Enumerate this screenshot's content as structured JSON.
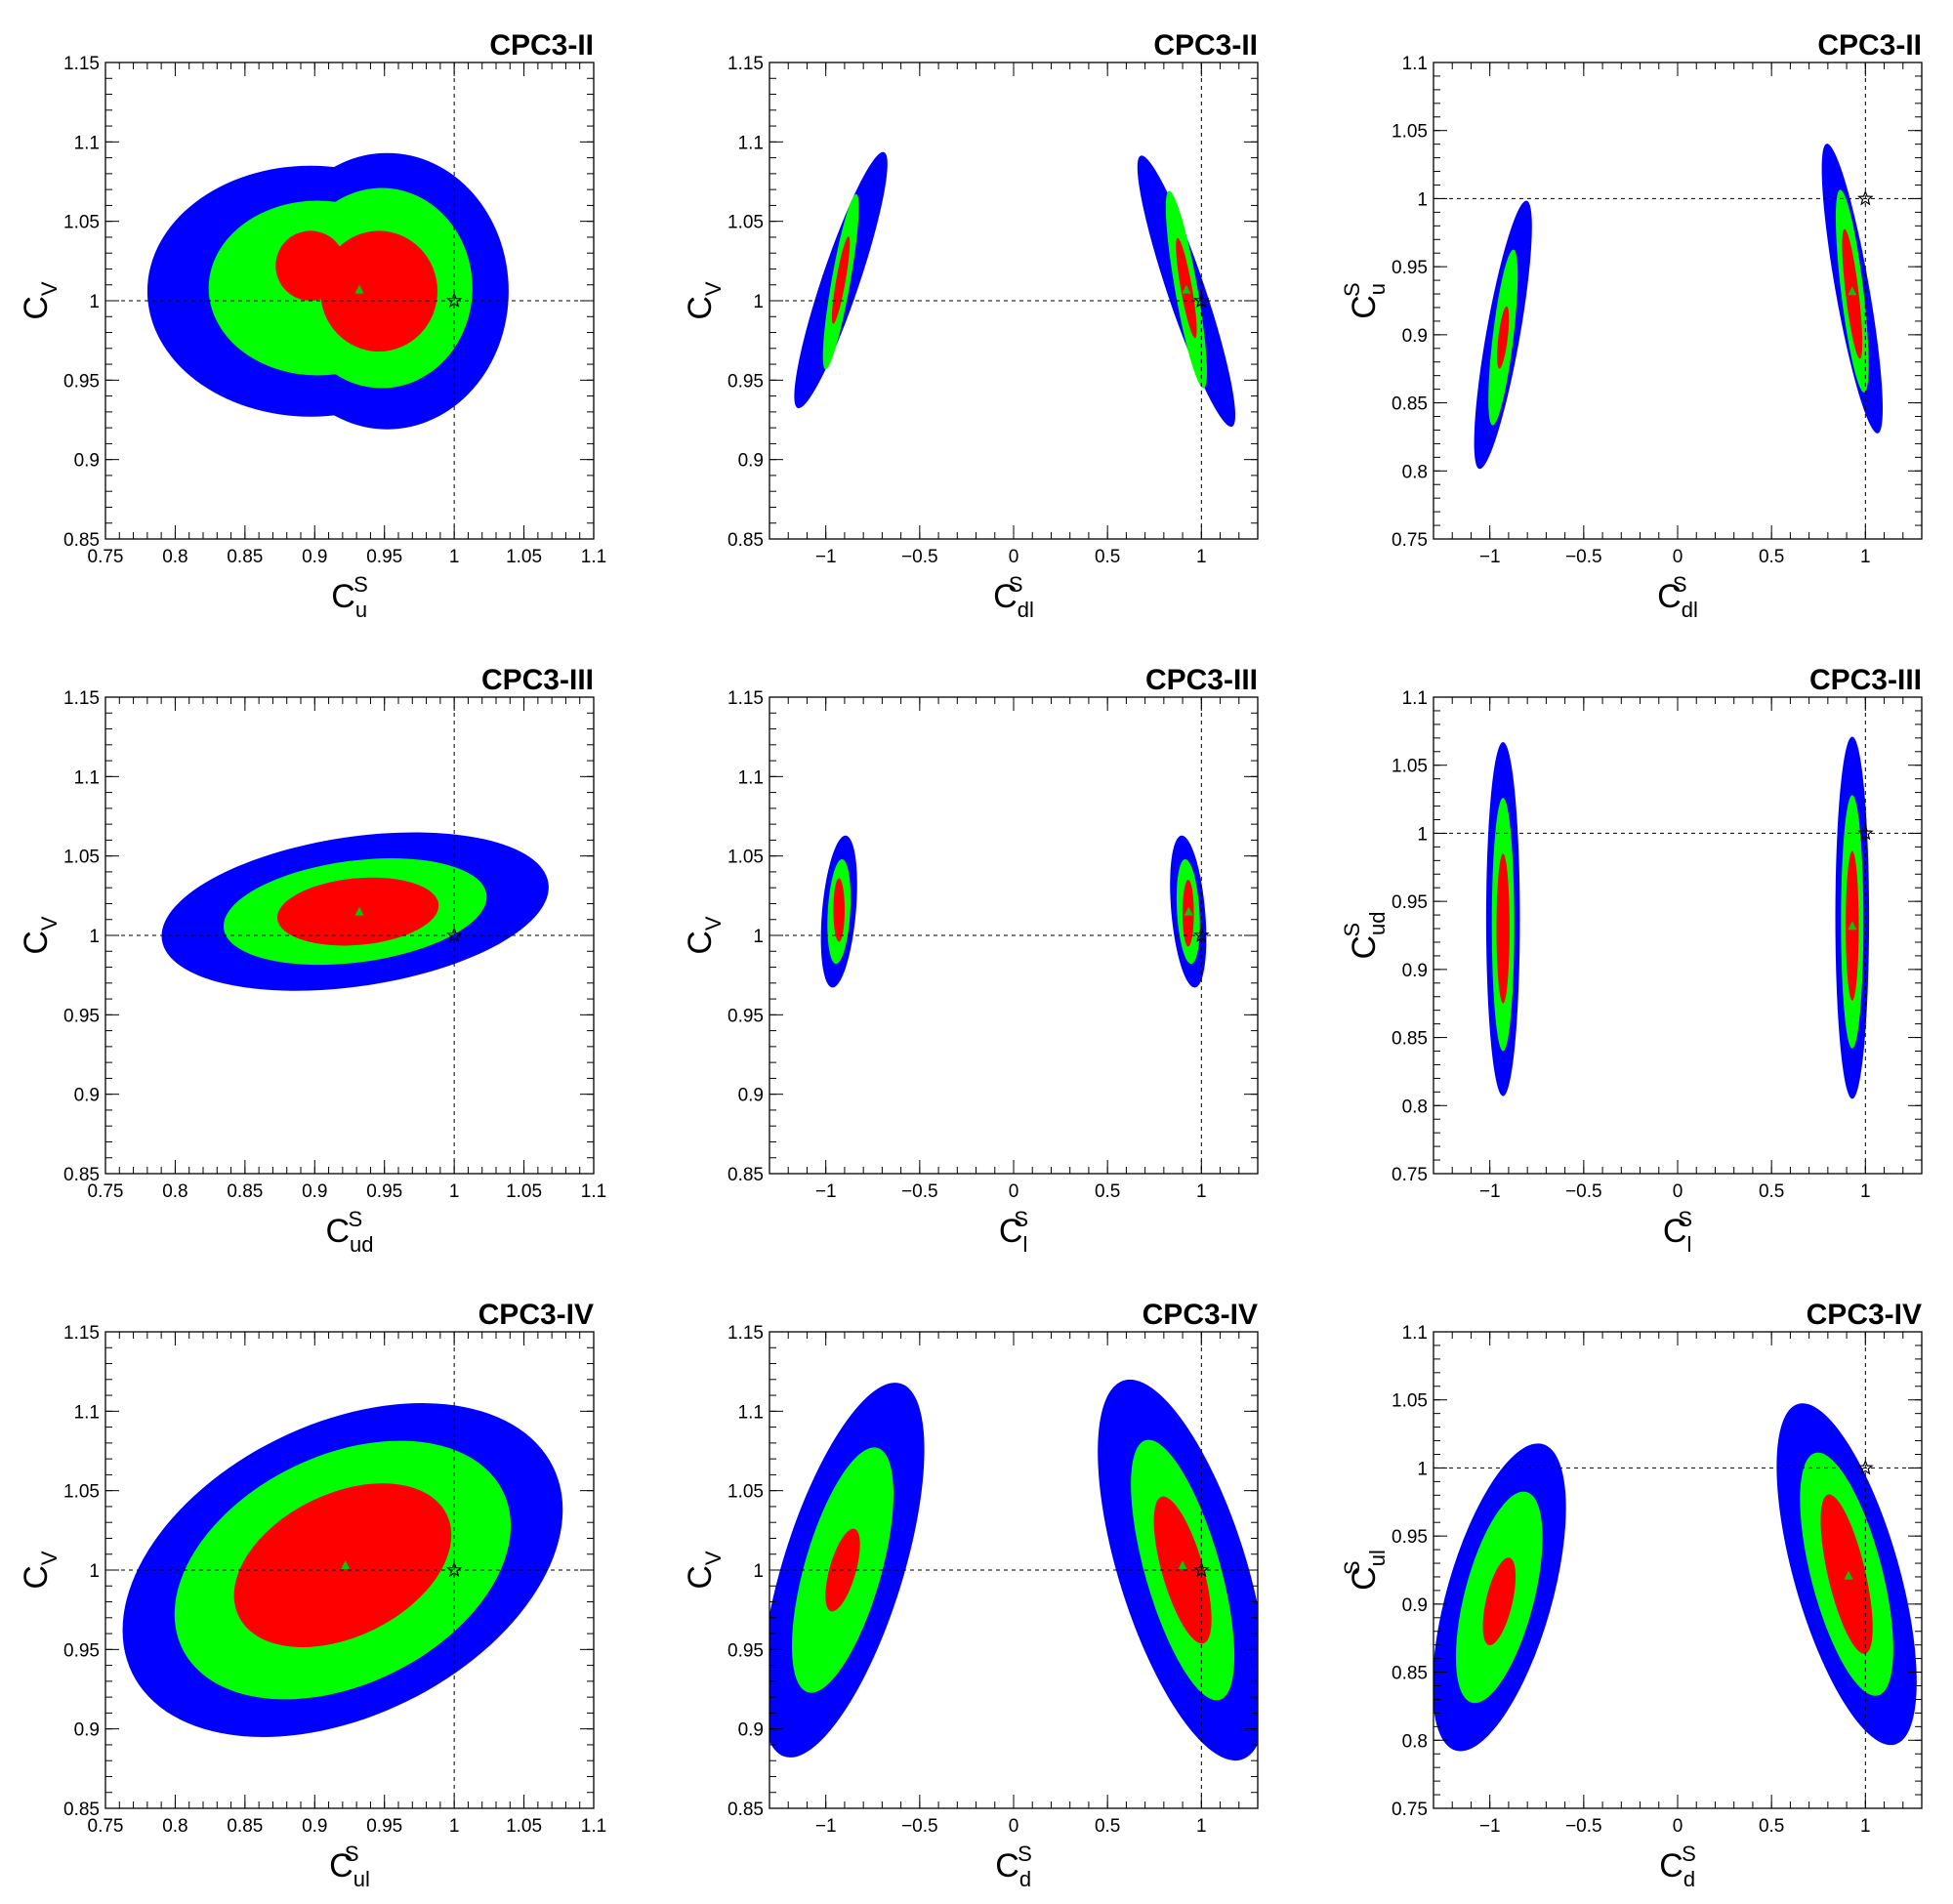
{
  "colors": {
    "sigma3": "#0000ff",
    "sigma2": "#00ff00",
    "sigma1": "#ff0000",
    "bestfit": "#00cc00"
  },
  "chart_data": [
    {
      "type": "contour",
      "title": "CPC3-II",
      "xlabel": {
        "base": "C",
        "sup": "S",
        "sub": "u"
      },
      "ylabel": {
        "base": "C",
        "sup": "",
        "sub": "V"
      },
      "xlim": [
        0.75,
        1.1
      ],
      "ylim": [
        0.85,
        1.15
      ],
      "xticks": [
        0.75,
        0.8,
        0.85,
        0.9,
        0.95,
        1,
        1.05,
        1.1
      ],
      "xticklabels": [
        "0.75",
        "0.8",
        "0.85",
        "0.9",
        "0.95",
        "1",
        "1.05",
        "1.1"
      ],
      "yticks": [
        0.85,
        0.9,
        0.95,
        1,
        1.05,
        1.1,
        1.15
      ],
      "yticklabels": [
        "0.85",
        "0.9",
        "0.95",
        "1",
        "1.05",
        "1.1",
        "1.15"
      ],
      "sm_point": [
        1,
        1
      ],
      "best_fit": [
        0.932,
        1.007
      ],
      "regions": [
        {
          "level": "3sigma",
          "ellipses": [
            [
              0.897,
              1.006,
              0.117,
              0.079,
              0
            ],
            [
              0.952,
              1.006,
              0.087,
              0.087,
              0
            ]
          ]
        },
        {
          "level": "2sigma",
          "ellipses": [
            [
              0.902,
              1.008,
              0.078,
              0.055,
              0
            ],
            [
              0.948,
              1.008,
              0.065,
              0.063,
              0
            ]
          ]
        },
        {
          "level": "1sigma",
          "ellipses": [
            [
              0.897,
              1.022,
              0.025,
              0.022,
              0
            ],
            [
              0.946,
              1.006,
              0.042,
              0.038,
              0
            ]
          ]
        }
      ]
    },
    {
      "type": "contour",
      "title": "CPC3-II",
      "xlabel": {
        "base": "C",
        "sup": "S",
        "sub": "dl"
      },
      "ylabel": {
        "base": "C",
        "sup": "",
        "sub": "V"
      },
      "xlim": [
        -1.3,
        1.3
      ],
      "ylim": [
        0.85,
        1.15
      ],
      "xticks": [
        -1,
        -0.5,
        0,
        0.5,
        1
      ],
      "xticklabels": [
        "−1",
        "−0.5",
        "0",
        "0.5",
        "1"
      ],
      "yticks": [
        0.85,
        0.9,
        0.95,
        1,
        1.05,
        1.1,
        1.15
      ],
      "yticklabels": [
        "0.85",
        "0.9",
        "0.95",
        "1",
        "1.05",
        "1.1",
        "1.15"
      ],
      "sm_point": [
        1,
        1
      ],
      "best_fit": [
        0.92,
        1.007
      ],
      "regions": [
        {
          "level": "3sigma",
          "ellipses": [
            [
              -0.92,
              1.013,
              0.1,
              0.085,
              -0.6
            ],
            [
              0.92,
              1.006,
              0.1,
              0.09,
              0.6
            ]
          ]
        },
        {
          "level": "2sigma",
          "ellipses": [
            [
              -0.92,
              1.012,
              0.05,
              0.056,
              -0.3
            ],
            [
              0.92,
              1.007,
              0.06,
              0.063,
              0.3
            ]
          ]
        },
        {
          "level": "1sigma",
          "ellipses": [
            [
              -0.92,
              1.013,
              0.025,
              0.028,
              -0.3
            ],
            [
              0.92,
              1.008,
              0.03,
              0.032,
              0.3
            ]
          ]
        }
      ]
    },
    {
      "type": "contour",
      "title": "CPC3-II",
      "xlabel": {
        "base": "C",
        "sup": "S",
        "sub": "dl"
      },
      "ylabel": {
        "base": "C",
        "sup": "S",
        "sub": "u"
      },
      "xlim": [
        -1.3,
        1.3
      ],
      "ylim": [
        0.75,
        1.1
      ],
      "xticks": [
        -1,
        -0.5,
        0,
        0.5,
        1
      ],
      "xticklabels": [
        "−1",
        "−0.5",
        "0",
        "0.5",
        "1"
      ],
      "yticks": [
        0.75,
        0.8,
        0.85,
        0.9,
        0.95,
        1,
        1.05,
        1.1
      ],
      "yticklabels": [
        "0.75",
        "0.8",
        "0.85",
        "0.9",
        "0.95",
        "1",
        "1.05",
        "1.1"
      ],
      "sm_point": [
        1,
        1
      ],
      "best_fit": [
        0.93,
        0.932
      ],
      "regions": [
        {
          "level": "3sigma",
          "ellipses": [
            [
              -0.93,
              0.9,
              0.09,
              0.1,
              -0.3
            ],
            [
              0.93,
              0.934,
              0.09,
              0.108,
              0.3
            ]
          ]
        },
        {
          "level": "2sigma",
          "ellipses": [
            [
              -0.93,
              0.898,
              0.055,
              0.065,
              -0.2
            ],
            [
              0.93,
              0.932,
              0.06,
              0.075,
              0.2
            ]
          ]
        },
        {
          "level": "1sigma",
          "ellipses": [
            [
              -0.93,
              0.898,
              0.025,
              0.023,
              -0.2
            ],
            [
              0.93,
              0.93,
              0.035,
              0.048,
              0.2
            ]
          ]
        }
      ]
    },
    {
      "type": "contour",
      "title": "CPC3-III",
      "xlabel": {
        "base": "C",
        "sup": "S",
        "sub": "ud"
      },
      "ylabel": {
        "base": "C",
        "sup": "",
        "sub": "V"
      },
      "xlim": [
        0.75,
        1.1
      ],
      "ylim": [
        0.85,
        1.15
      ],
      "xticks": [
        0.75,
        0.8,
        0.85,
        0.9,
        0.95,
        1,
        1.05,
        1.1
      ],
      "xticklabels": [
        "0.75",
        "0.8",
        "0.85",
        "0.9",
        "0.95",
        "1",
        "1.05",
        "1.1"
      ],
      "yticks": [
        0.85,
        0.9,
        0.95,
        1,
        1.05,
        1.1,
        1.15
      ],
      "yticklabels": [
        "0.85",
        "0.9",
        "0.95",
        "1",
        "1.05",
        "1.1",
        "1.15"
      ],
      "sm_point": [
        1,
        1
      ],
      "best_fit": [
        0.932,
        1.015
      ],
      "regions": [
        {
          "level": "3sigma",
          "ellipses": [
            [
              0.929,
              1.015,
              0.14,
              0.047,
              0.25
            ]
          ]
        },
        {
          "level": "2sigma",
          "ellipses": [
            [
              0.929,
              1.015,
              0.095,
              0.032,
              0.22
            ]
          ]
        },
        {
          "level": "1sigma",
          "ellipses": [
            [
              0.931,
              1.015,
              0.058,
              0.021,
              0.15
            ]
          ]
        }
      ]
    },
    {
      "type": "contour",
      "title": "CPC3-III",
      "xlabel": {
        "base": "C",
        "sup": "S",
        "sub": "l"
      },
      "ylabel": {
        "base": "C",
        "sup": "",
        "sub": "V"
      },
      "xlim": [
        -1.3,
        1.3
      ],
      "ylim": [
        0.85,
        1.15
      ],
      "xticks": [
        -1,
        -0.5,
        0,
        0.5,
        1
      ],
      "xticklabels": [
        "−1",
        "−0.5",
        "0",
        "0.5",
        "1"
      ],
      "yticks": [
        0.85,
        0.9,
        0.95,
        1,
        1.05,
        1.1,
        1.15
      ],
      "yticklabels": [
        "0.85",
        "0.9",
        "0.95",
        "1",
        "1.05",
        "1.1",
        "1.15"
      ],
      "sm_point": [
        1,
        1
      ],
      "best_fit": [
        0.932,
        1.015
      ],
      "regions": [
        {
          "level": "3sigma",
          "ellipses": [
            [
              -0.93,
              1.015,
              0.09,
              0.048,
              -0.15
            ],
            [
              0.93,
              1.015,
              0.09,
              0.048,
              0.15
            ]
          ]
        },
        {
          "level": "2sigma",
          "ellipses": [
            [
              -0.93,
              1.015,
              0.06,
              0.033,
              -0.1
            ],
            [
              0.93,
              1.015,
              0.06,
              0.033,
              0.1
            ]
          ]
        },
        {
          "level": "1sigma",
          "ellipses": [
            [
              -0.93,
              1.016,
              0.03,
              0.02,
              0
            ],
            [
              0.93,
              1.014,
              0.03,
              0.021,
              0
            ]
          ]
        }
      ]
    },
    {
      "type": "contour",
      "title": "CPC3-III",
      "xlabel": {
        "base": "C",
        "sup": "S",
        "sub": "l"
      },
      "ylabel": {
        "base": "C",
        "sup": "S",
        "sub": "ud"
      },
      "xlim": [
        -1.3,
        1.3
      ],
      "ylim": [
        0.75,
        1.1
      ],
      "xticks": [
        -1,
        -0.5,
        0,
        0.5,
        1
      ],
      "xticklabels": [
        "−1",
        "−0.5",
        "0",
        "0.5",
        "1"
      ],
      "yticks": [
        0.75,
        0.8,
        0.85,
        0.9,
        0.95,
        1,
        1.05,
        1.1
      ],
      "yticklabels": [
        "0.75",
        "0.8",
        "0.85",
        "0.9",
        "0.95",
        "1",
        "1.05",
        "1.1"
      ],
      "sm_point": [
        1,
        1
      ],
      "best_fit": [
        0.93,
        0.932
      ],
      "regions": [
        {
          "level": "3sigma",
          "ellipses": [
            [
              -0.93,
              0.937,
              0.09,
              0.13,
              0
            ],
            [
              0.93,
              0.938,
              0.09,
              0.133,
              0
            ]
          ]
        },
        {
          "level": "2sigma",
          "ellipses": [
            [
              -0.93,
              0.933,
              0.06,
              0.093,
              0
            ],
            [
              0.93,
              0.935,
              0.06,
              0.093,
              0
            ]
          ]
        },
        {
          "level": "1sigma",
          "ellipses": [
            [
              -0.93,
              0.93,
              0.035,
              0.055,
              0
            ],
            [
              0.93,
              0.932,
              0.035,
              0.055,
              0
            ]
          ]
        }
      ]
    },
    {
      "type": "contour",
      "title": "CPC3-IV",
      "xlabel": {
        "base": "C",
        "sup": "S",
        "sub": "ul"
      },
      "ylabel": {
        "base": "C",
        "sup": "",
        "sub": "V"
      },
      "xlim": [
        0.75,
        1.1
      ],
      "ylim": [
        0.85,
        1.15
      ],
      "xticks": [
        0.75,
        0.8,
        0.85,
        0.9,
        0.95,
        1,
        1.05,
        1.1
      ],
      "xticklabels": [
        "0.75",
        "0.8",
        "0.85",
        "0.9",
        "0.95",
        "1",
        "1.05",
        "1.1"
      ],
      "yticks": [
        0.85,
        0.9,
        0.95,
        1,
        1.05,
        1.1,
        1.15
      ],
      "yticklabels": [
        "0.85",
        "0.9",
        "0.95",
        "1",
        "1.05",
        "1.1",
        "1.15"
      ],
      "sm_point": [
        1,
        1
      ],
      "best_fit": [
        0.922,
        1.003
      ],
      "regions": [
        {
          "level": "3sigma",
          "ellipses": [
            [
              0.92,
              1.0,
              0.168,
              0.092,
              0.95
            ]
          ]
        },
        {
          "level": "2sigma",
          "ellipses": [
            [
              0.92,
              1.0,
              0.128,
              0.072,
              0.95
            ]
          ]
        },
        {
          "level": "1sigma",
          "ellipses": [
            [
              0.92,
              1.003,
              0.083,
              0.045,
              0.95
            ]
          ]
        }
      ]
    },
    {
      "type": "contour",
      "title": "CPC3-IV",
      "xlabel": {
        "base": "C",
        "sup": "S",
        "sub": "d"
      },
      "ylabel": {
        "base": "C",
        "sup": "",
        "sub": "V"
      },
      "xlim": [
        -1.3,
        1.3
      ],
      "ylim": [
        0.85,
        1.15
      ],
      "xticks": [
        -1,
        -0.5,
        0,
        0.5,
        1
      ],
      "xticklabels": [
        "−1",
        "−0.5",
        "0",
        "0.5",
        "1"
      ],
      "yticks": [
        0.85,
        0.9,
        0.95,
        1,
        1.05,
        1.1,
        1.15
      ],
      "yticklabels": [
        "0.85",
        "0.9",
        "0.95",
        "1",
        "1.05",
        "1.1",
        "1.15"
      ],
      "sm_point": [
        1,
        1
      ],
      "best_fit": [
        0.9,
        1.003
      ],
      "regions": [
        {
          "level": "3sigma",
          "ellipses": [
            [
              -0.91,
              1.0,
              0.32,
              0.123,
              -0.55
            ],
            [
              0.9,
              1.0,
              0.34,
              0.125,
              0.55
            ]
          ]
        },
        {
          "level": "2sigma",
          "ellipses": [
            [
              -0.91,
              1.0,
              0.205,
              0.08,
              -0.5
            ],
            [
              0.9,
              1.0,
              0.2,
              0.085,
              0.5
            ]
          ]
        },
        {
          "level": "1sigma",
          "ellipses": [
            [
              -0.91,
              1.0,
              0.07,
              0.027,
              -0.5
            ],
            [
              0.9,
              1.0,
              0.11,
              0.048,
              0.5
            ]
          ]
        }
      ]
    },
    {
      "type": "contour",
      "title": "CPC3-IV",
      "xlabel": {
        "base": "C",
        "sup": "S",
        "sub": "d"
      },
      "ylabel": {
        "base": "C",
        "sup": "S",
        "sub": "ul"
      },
      "xlim": [
        -1.3,
        1.3
      ],
      "ylim": [
        0.75,
        1.1
      ],
      "xticks": [
        -1,
        -0.5,
        0,
        0.5,
        1
      ],
      "xticklabels": [
        "−1",
        "−0.5",
        "0",
        "0.5",
        "1"
      ],
      "yticks": [
        0.75,
        0.8,
        0.85,
        0.9,
        0.95,
        1,
        1.05,
        1.1
      ],
      "yticklabels": [
        "0.75",
        "0.8",
        "0.85",
        "0.9",
        "0.95",
        "1",
        "1.05",
        "1.1"
      ],
      "sm_point": [
        1,
        1
      ],
      "best_fit": [
        0.91,
        0.921
      ],
      "regions": [
        {
          "level": "3sigma",
          "ellipses": [
            [
              -0.95,
              0.905,
              0.28,
              0.117,
              -0.5
            ],
            [
              0.9,
              0.922,
              0.28,
              0.13,
              0.5
            ]
          ]
        },
        {
          "level": "2sigma",
          "ellipses": [
            [
              -0.95,
              0.905,
              0.185,
              0.08,
              -0.45
            ],
            [
              0.9,
              0.922,
              0.19,
              0.092,
              0.45
            ]
          ]
        },
        {
          "level": "1sigma",
          "ellipses": [
            [
              -0.95,
              0.902,
              0.07,
              0.033,
              -0.4
            ],
            [
              0.9,
              0.922,
              0.1,
              0.06,
              0.4
            ]
          ]
        }
      ]
    }
  ]
}
